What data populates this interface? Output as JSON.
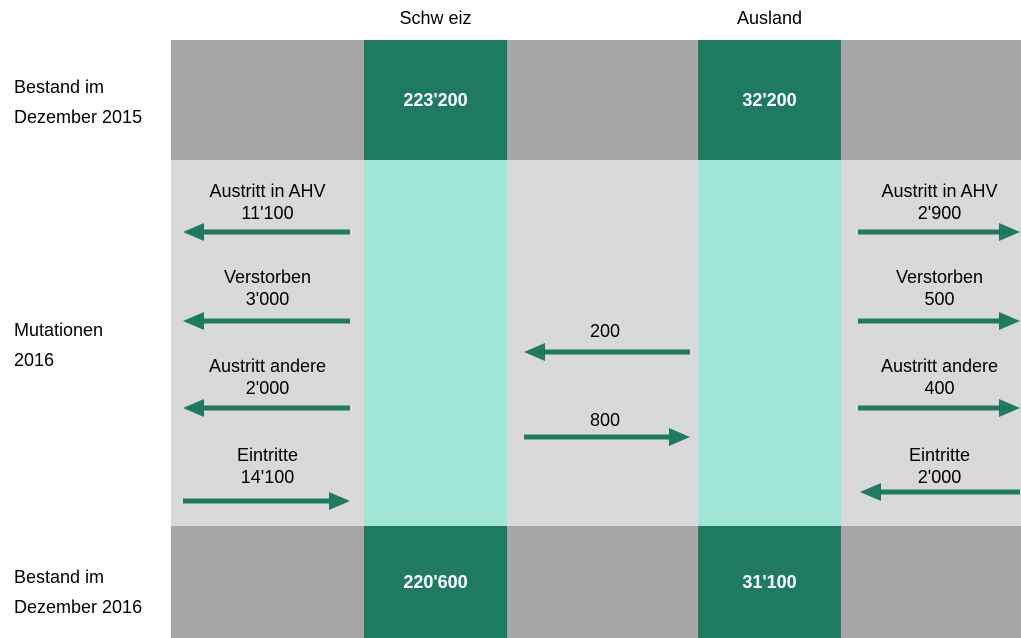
{
  "columns": {
    "schweiz": "Schw eiz",
    "ausland": "Ausland"
  },
  "rows": {
    "bestand_2015": [
      "Bestand im",
      "Dezember 2015"
    ],
    "mutationen": [
      "Mutationen",
      "2016"
    ],
    "bestand_2016": [
      "Bestand im",
      "Dezember 2016"
    ]
  },
  "totals": {
    "schweiz_2015": "223'200",
    "ausland_2015": "32'200",
    "schweiz_2016": "220'600",
    "ausland_2016": "31'100"
  },
  "flows_schweiz": [
    {
      "label": "Austritt in AHV",
      "value": "11'100",
      "direction": "out"
    },
    {
      "label": "Verstorben",
      "value": "3'000",
      "direction": "out"
    },
    {
      "label": "Austritt andere",
      "value": "2'000",
      "direction": "out"
    },
    {
      "label": "Eintritte",
      "value": "14'100",
      "direction": "in"
    }
  ],
  "flows_ausland": [
    {
      "label": "Austritt in AHV",
      "value": "2'900",
      "direction": "out"
    },
    {
      "label": "Verstorben",
      "value": "500",
      "direction": "out"
    },
    {
      "label": "Austritt andere",
      "value": "400",
      "direction": "out"
    },
    {
      "label": "Eintritte",
      "value": "2'000",
      "direction": "in"
    }
  ],
  "transfers": {
    "ausland_to_schweiz": "200",
    "schweiz_to_ausland": "800"
  },
  "colors": {
    "dark_green": "#1f7a62",
    "light_green": "#a1e6d6",
    "dark_grey": "#a6a6a6",
    "light_grey": "#d9d9d9",
    "arrow": "#1f7a62"
  }
}
